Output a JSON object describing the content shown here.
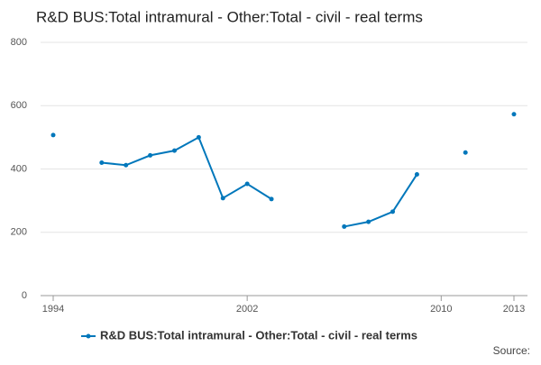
{
  "chart_data": {
    "type": "line",
    "title": "R&D BUS:Total intramural - Other:Total - civil - real terms",
    "x": [
      1994,
      1995,
      1996,
      1997,
      1998,
      1999,
      2000,
      2001,
      2002,
      2003,
      2004,
      2005,
      2006,
      2007,
      2008,
      2009,
      2010,
      2011,
      2012,
      2013
    ],
    "series": [
      {
        "name": "R&D BUS:Total intramural - Other:Total - civil - real terms",
        "color": "#0077bb",
        "values": [
          507,
          null,
          420,
          412,
          443,
          458,
          500,
          308,
          353,
          305,
          null,
          null,
          218,
          233,
          265,
          383,
          null,
          452,
          null,
          573
        ]
      }
    ],
    "xlim": [
      1994,
      2013
    ],
    "xticks": [
      1994,
      2002,
      2010,
      2013
    ],
    "ylim": [
      0,
      800
    ],
    "yticks": [
      0,
      200,
      400,
      600,
      800
    ],
    "grid": true,
    "source": "Source:"
  }
}
